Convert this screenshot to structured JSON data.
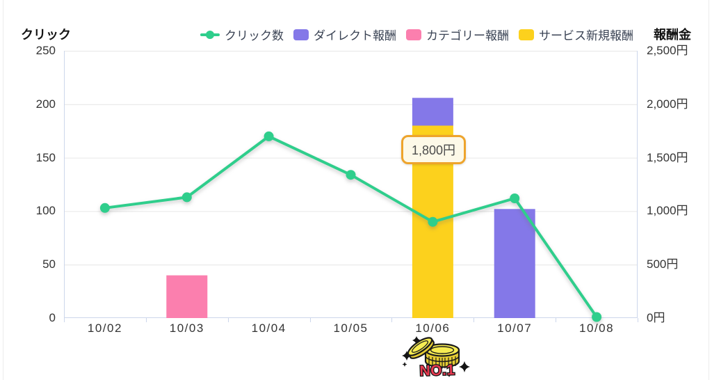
{
  "axes_titles": {
    "left": "クリック",
    "right": "報酬金"
  },
  "tooltip": {
    "text": "1,800円",
    "category": "10/06",
    "border_color": "#eea42c",
    "bg_color": "#fdf9e8"
  },
  "badge": {
    "label": "NO.1"
  },
  "colors": {
    "axis_line": "#ccd6eb",
    "grid_line": "#e6e6e6",
    "tick_text": "#333333",
    "legend_text": "#3a4354",
    "no1_red": "#e83a50",
    "coin_yellow": "#f6ec52",
    "coin_shade": "#e6cd33"
  },
  "chart_data": {
    "type": "mixed (line on left axis + stacked bars on right axis)",
    "title": "",
    "categories": [
      "10/02",
      "10/03",
      "10/04",
      "10/05",
      "10/06",
      "10/07",
      "10/08"
    ],
    "left_axis": {
      "title": "クリック",
      "min": 0,
      "max": 250,
      "tick_step": 50,
      "tick_labels": [
        "0",
        "50",
        "100",
        "150",
        "200",
        "250"
      ]
    },
    "right_axis": {
      "title": "報酬金",
      "min": 0,
      "max": 2500,
      "tick_step": 500,
      "tick_labels": [
        "0円",
        "500円",
        "1,000円",
        "1,500円",
        "2,000円",
        "2,500円"
      ]
    },
    "series": [
      {
        "name": "クリック数",
        "type": "line",
        "axis": "left",
        "color": "#2fce8c",
        "values": [
          103,
          113,
          170,
          134,
          90,
          112,
          1
        ]
      },
      {
        "name": "ダイレクト報酬",
        "type": "bar",
        "axis": "right",
        "color": "#8478e8",
        "values": [
          0,
          0,
          0,
          0,
          260,
          1020,
          0
        ]
      },
      {
        "name": "カテゴリー報酬",
        "type": "bar",
        "axis": "right",
        "color": "#fb7fae",
        "values": [
          0,
          400,
          0,
          0,
          0,
          0,
          0
        ]
      },
      {
        "name": "サービス新規報酬",
        "type": "bar",
        "axis": "right",
        "color": "#fcd11d",
        "values": [
          0,
          0,
          0,
          0,
          1800,
          0,
          0
        ]
      }
    ],
    "bar_stack_order": [
      3,
      1,
      2
    ],
    "annotations": [
      {
        "text": "1,800円",
        "attached_to": "サービス新規報酬 @ 10/06"
      }
    ],
    "legend_position": "top",
    "grid": "horizontal gridlines every 50 clicks / 500円"
  }
}
